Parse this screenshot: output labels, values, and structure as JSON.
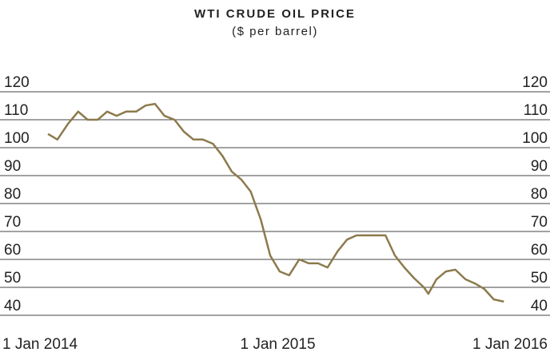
{
  "chart_data": {
    "type": "line",
    "title": "WTI CRUDE OIL PRICE",
    "subtitle": "($ per barrel)",
    "x": [
      "2014-01-01",
      "2014-01-16",
      "2014-02-02",
      "2014-02-18",
      "2014-03-05",
      "2014-03-21",
      "2014-04-05",
      "2014-04-20",
      "2014-05-05",
      "2014-05-21",
      "2014-06-05",
      "2014-06-20",
      "2014-07-05",
      "2014-07-21",
      "2014-08-05",
      "2014-08-20",
      "2014-09-04",
      "2014-09-20",
      "2014-10-05",
      "2014-10-20",
      "2014-11-04",
      "2014-11-19",
      "2014-12-05",
      "2014-12-20",
      "2015-01-04",
      "2015-01-19",
      "2015-02-04",
      "2015-02-19",
      "2015-03-06",
      "2015-03-21",
      "2015-04-06",
      "2015-04-21",
      "2015-05-06",
      "2015-05-21",
      "2015-06-06",
      "2015-06-21",
      "2015-07-06",
      "2015-07-21",
      "2015-08-05",
      "2015-08-21",
      "2015-08-28",
      "2015-09-10",
      "2015-09-25",
      "2015-10-10",
      "2015-10-26",
      "2015-11-10",
      "2015-11-25",
      "2015-12-10",
      "2015-12-26"
    ],
    "series": [
      {
        "name": "WTI",
        "color": "#8c7a4c",
        "values": [
          104.9,
          102.9,
          108.6,
          112.9,
          110,
          110,
          112.9,
          111.4,
          112.9,
          112.9,
          115.1,
          115.7,
          111.4,
          110,
          105.7,
          102.9,
          102.9,
          101.4,
          97.1,
          91.4,
          88.6,
          84.3,
          74.3,
          61.4,
          55.7,
          54.3,
          60,
          58.6,
          58.6,
          57.1,
          62.9,
          67.1,
          68.6,
          68.6,
          68.6,
          68.6,
          61.4,
          57.1,
          53.4,
          50,
          47.7,
          52.9,
          55.7,
          56.3,
          52.9,
          51.4,
          49.4,
          45.7,
          44.9
        ]
      }
    ],
    "xlim": [
      "2014-01-01",
      "2016-01-01"
    ],
    "xticks": [
      {
        "value": "2014-01-01",
        "label": "1 Jan 2014"
      },
      {
        "value": "2015-01-01",
        "label": "1 Jan 2015"
      },
      {
        "value": "2016-01-01",
        "label": "1 Jan 2016"
      }
    ],
    "ylim": [
      40,
      120
    ],
    "yticks": [
      120,
      110,
      100,
      90,
      80,
      70,
      60,
      50,
      40
    ],
    "grid": true
  }
}
